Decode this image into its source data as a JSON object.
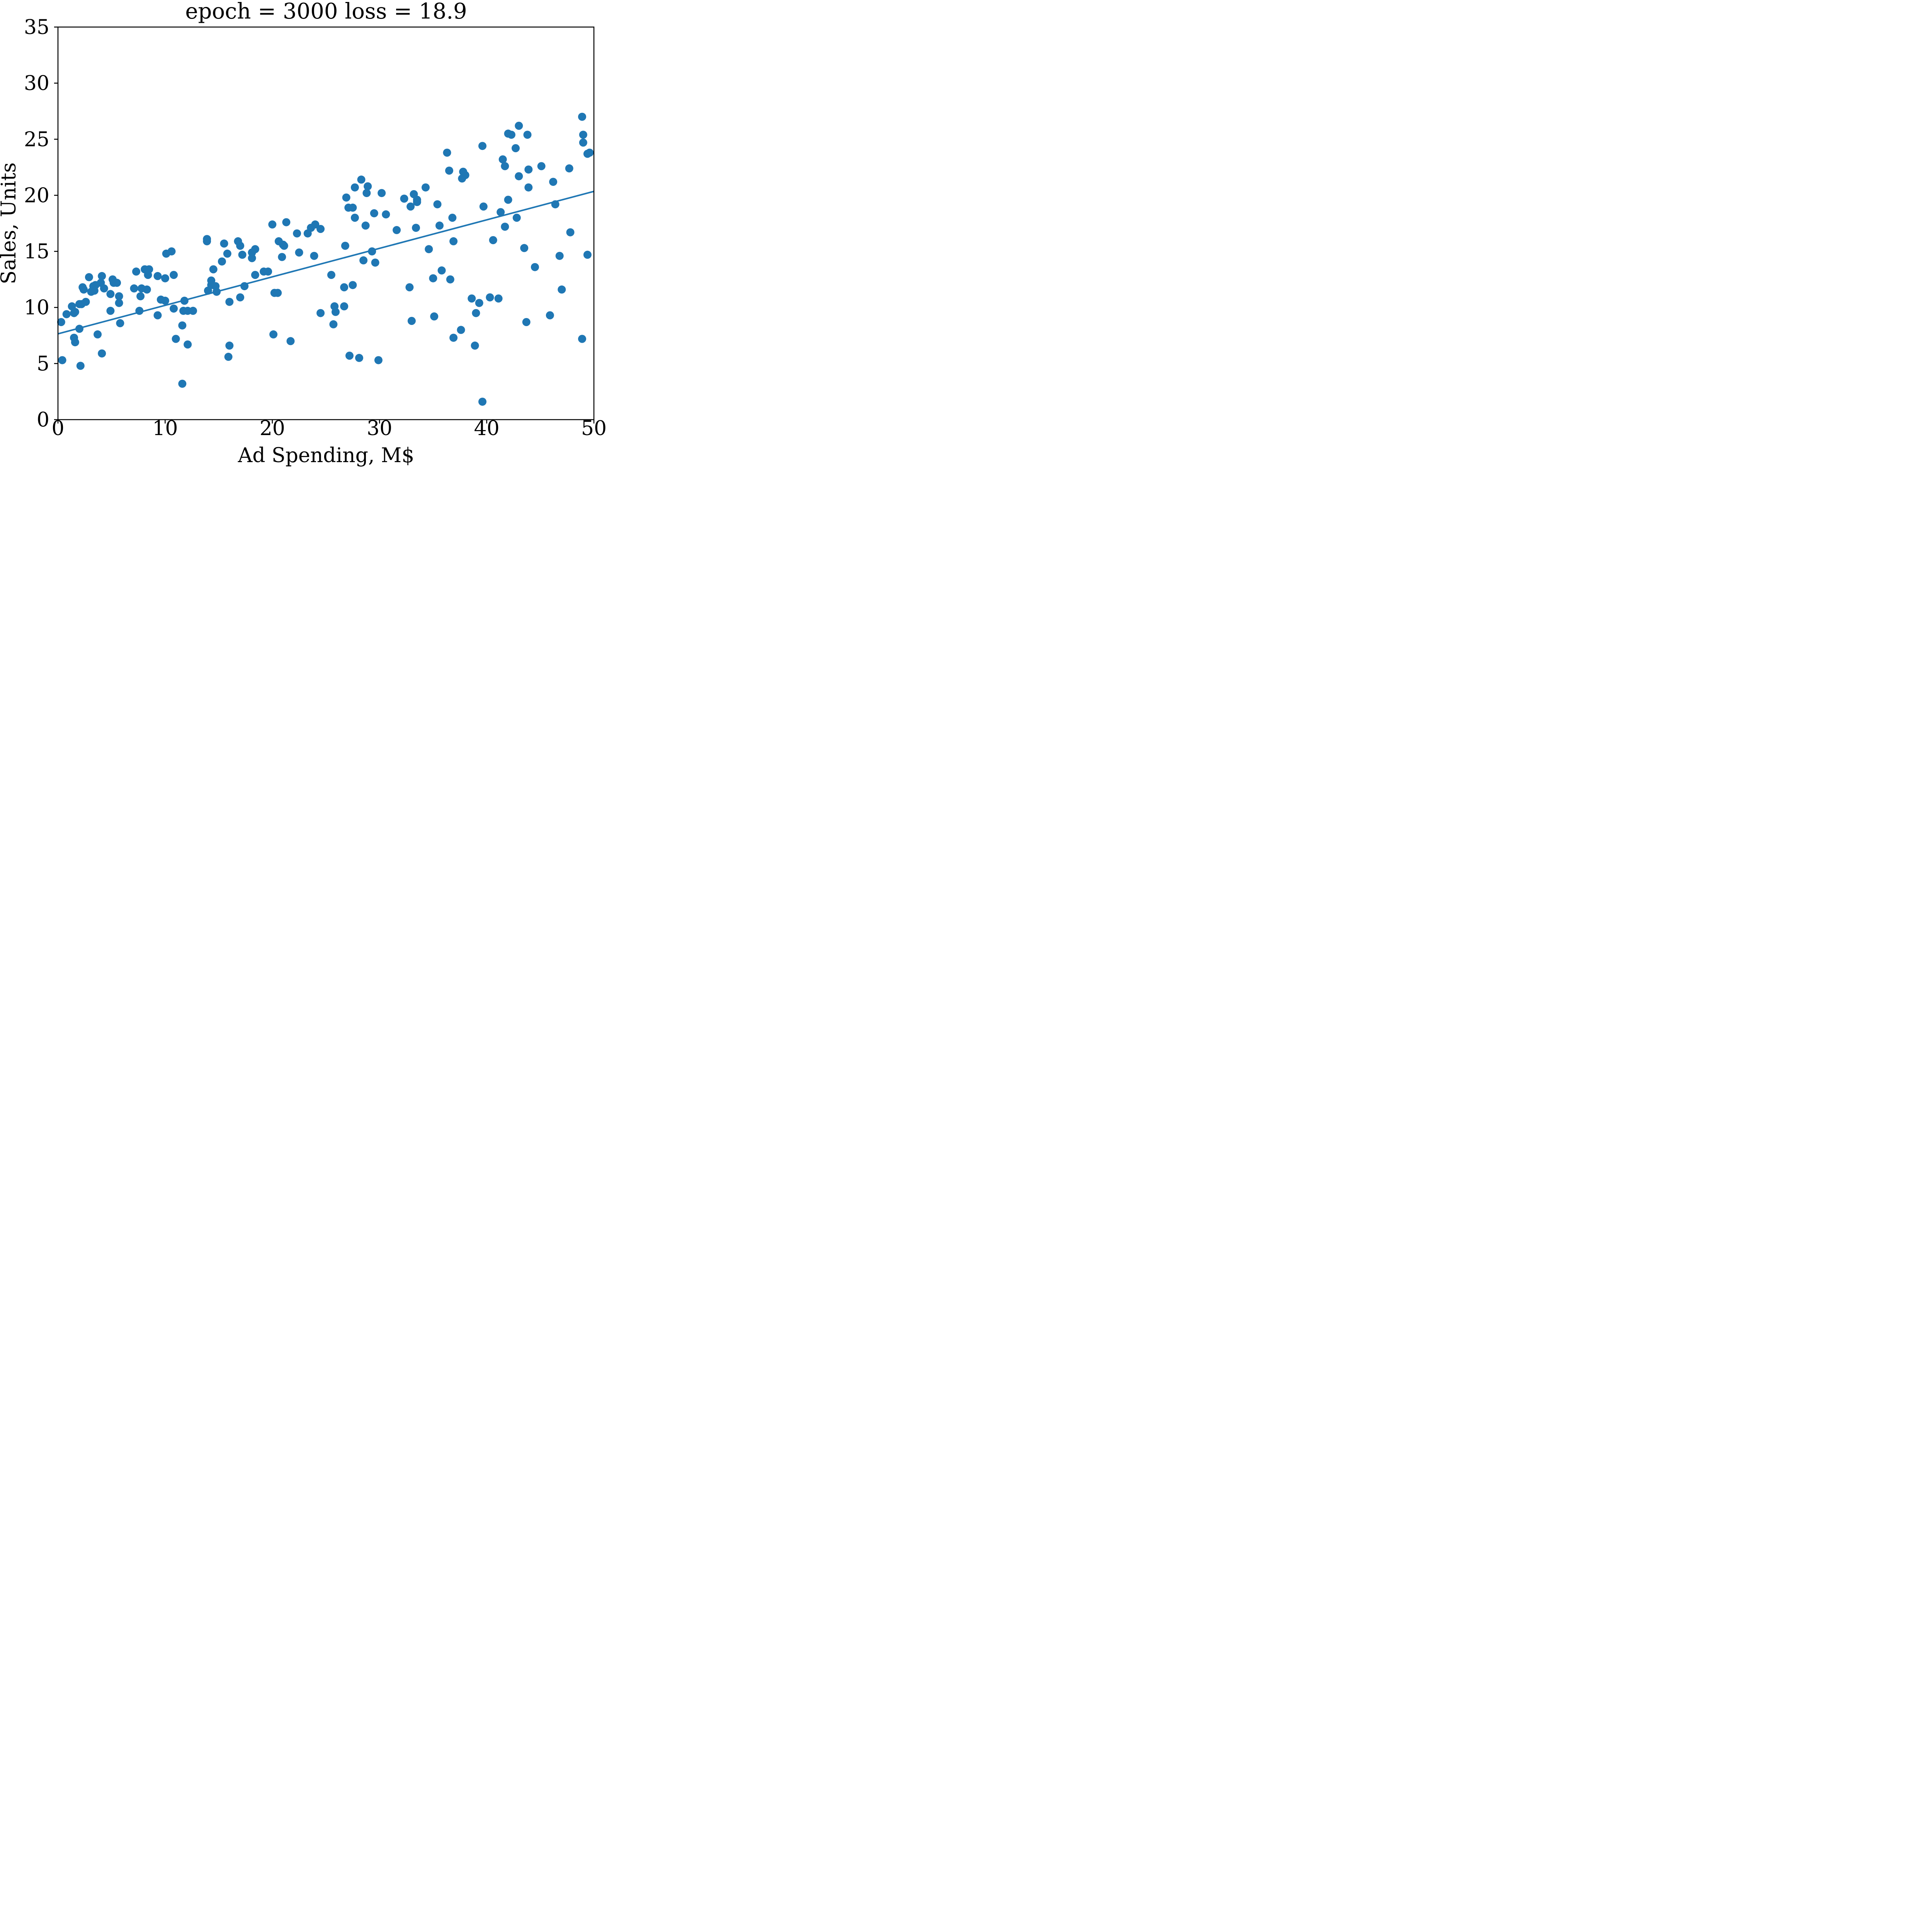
{
  "chart_data": {
    "type": "scatter",
    "title": "epoch = 3000 loss = 18.9",
    "xlabel": "Ad Spending, M$",
    "ylabel": "Sales, Units",
    "xlim": [
      0,
      50
    ],
    "ylim": [
      0,
      35
    ],
    "xticks": [
      0,
      10,
      20,
      30,
      40,
      50
    ],
    "yticks": [
      0,
      5,
      10,
      15,
      20,
      25,
      30,
      35
    ],
    "grid": false,
    "color": "#1f77b4",
    "series": [
      {
        "type": "scatter",
        "points": [
          [
            0.3,
            8.7
          ],
          [
            0.4,
            5.3
          ],
          [
            0.8,
            9.4
          ],
          [
            1.3,
            10.1
          ],
          [
            1.5,
            9.5
          ],
          [
            1.5,
            7.3
          ],
          [
            1.6,
            6.9
          ],
          [
            1.6,
            9.6
          ],
          [
            2.0,
            8.1
          ],
          [
            2.1,
            4.8
          ],
          [
            2.0,
            10.3
          ],
          [
            2.2,
            10.3
          ],
          [
            2.3,
            11.8
          ],
          [
            2.4,
            11.6
          ],
          [
            2.6,
            10.5
          ],
          [
            2.9,
            12.7
          ],
          [
            3.1,
            11.4
          ],
          [
            3.3,
            11.9
          ],
          [
            3.4,
            11.5
          ],
          [
            3.5,
            12.0
          ],
          [
            3.7,
            7.6
          ],
          [
            4.0,
            12.2
          ],
          [
            4.1,
            12.8
          ],
          [
            4.1,
            5.9
          ],
          [
            4.3,
            11.7
          ],
          [
            4.9,
            11.2
          ],
          [
            4.9,
            9.7
          ],
          [
            5.1,
            12.5
          ],
          [
            5.2,
            12.2
          ],
          [
            5.5,
            12.2
          ],
          [
            5.7,
            11.0
          ],
          [
            5.7,
            10.4
          ],
          [
            5.8,
            8.6
          ],
          [
            7.1,
            11.7
          ],
          [
            7.3,
            13.2
          ],
          [
            7.6,
            9.7
          ],
          [
            7.7,
            11.0
          ],
          [
            7.8,
            11.7
          ],
          [
            8.1,
            13.4
          ],
          [
            8.4,
            12.9
          ],
          [
            8.3,
            11.6
          ],
          [
            8.5,
            13.4
          ],
          [
            9.3,
            12.8
          ],
          [
            9.3,
            9.3
          ],
          [
            9.6,
            10.7
          ],
          [
            10.0,
            10.6
          ],
          [
            10.0,
            12.6
          ],
          [
            10.1,
            14.8
          ],
          [
            10.6,
            15.0
          ],
          [
            10.8,
            12.9
          ],
          [
            10.8,
            9.9
          ],
          [
            11.0,
            7.2
          ],
          [
            11.6,
            8.4
          ],
          [
            11.7,
            9.7
          ],
          [
            11.6,
            3.2
          ],
          [
            11.8,
            10.6
          ],
          [
            12.1,
            9.7
          ],
          [
            12.1,
            6.7
          ],
          [
            12.6,
            9.7
          ],
          [
            13.9,
            16.1
          ],
          [
            13.9,
            15.9
          ],
          [
            14.0,
            11.5
          ],
          [
            14.3,
            12.4
          ],
          [
            14.3,
            12.0
          ],
          [
            14.5,
            13.4
          ],
          [
            14.7,
            11.9
          ],
          [
            14.8,
            11.4
          ],
          [
            15.3,
            14.1
          ],
          [
            15.5,
            15.7
          ],
          [
            15.8,
            14.8
          ],
          [
            15.9,
            5.6
          ],
          [
            16.0,
            10.5
          ],
          [
            16.0,
            6.6
          ],
          [
            16.8,
            15.9
          ],
          [
            17.0,
            15.5
          ],
          [
            17.2,
            14.7
          ],
          [
            17.0,
            10.9
          ],
          [
            17.4,
            11.9
          ],
          [
            18.1,
            14.9
          ],
          [
            18.1,
            14.4
          ],
          [
            18.4,
            15.2
          ],
          [
            18.4,
            12.9
          ],
          [
            19.2,
            13.2
          ],
          [
            19.6,
            13.2
          ],
          [
            20.0,
            17.4
          ],
          [
            20.1,
            7.6
          ],
          [
            20.2,
            11.3
          ],
          [
            20.5,
            11.3
          ],
          [
            20.6,
            15.9
          ],
          [
            20.9,
            14.5
          ],
          [
            21.0,
            15.6
          ],
          [
            21.1,
            15.5
          ],
          [
            21.3,
            17.6
          ],
          [
            21.7,
            7.0
          ],
          [
            22.3,
            16.6
          ],
          [
            22.5,
            14.9
          ],
          [
            23.3,
            16.6
          ],
          [
            23.6,
            17.1
          ],
          [
            24.0,
            17.4
          ],
          [
            23.9,
            14.6
          ],
          [
            24.5,
            17.0
          ],
          [
            24.5,
            9.5
          ],
          [
            25.5,
            12.9
          ],
          [
            25.7,
            8.5
          ],
          [
            25.8,
            10.1
          ],
          [
            25.9,
            9.6
          ],
          [
            26.7,
            11.8
          ],
          [
            26.7,
            10.1
          ],
          [
            26.8,
            15.5
          ],
          [
            26.9,
            19.8
          ],
          [
            27.1,
            18.9
          ],
          [
            27.2,
            5.7
          ],
          [
            27.5,
            18.9
          ],
          [
            27.5,
            12.0
          ],
          [
            27.7,
            18.0
          ],
          [
            27.7,
            20.7
          ],
          [
            28.1,
            5.5
          ],
          [
            28.3,
            21.4
          ],
          [
            28.5,
            14.2
          ],
          [
            28.7,
            17.3
          ],
          [
            28.8,
            20.2
          ],
          [
            28.9,
            20.8
          ],
          [
            29.3,
            15.0
          ],
          [
            29.5,
            18.4
          ],
          [
            29.6,
            14.0
          ],
          [
            29.9,
            5.3
          ],
          [
            30.2,
            20.2
          ],
          [
            30.6,
            18.3
          ],
          [
            31.6,
            16.9
          ],
          [
            32.3,
            19.7
          ],
          [
            32.8,
            11.8
          ],
          [
            32.9,
            19.0
          ],
          [
            33.0,
            8.8
          ],
          [
            33.2,
            20.1
          ],
          [
            33.4,
            17.1
          ],
          [
            33.5,
            19.6
          ],
          [
            33.5,
            19.4
          ],
          [
            34.3,
            20.7
          ],
          [
            34.6,
            15.2
          ],
          [
            35.0,
            12.6
          ],
          [
            35.1,
            9.2
          ],
          [
            35.4,
            19.2
          ],
          [
            35.6,
            17.3
          ],
          [
            35.8,
            13.3
          ],
          [
            36.3,
            23.8
          ],
          [
            36.5,
            22.2
          ],
          [
            36.6,
            12.5
          ],
          [
            36.8,
            18.0
          ],
          [
            36.9,
            15.9
          ],
          [
            36.9,
            7.3
          ],
          [
            37.6,
            8.0
          ],
          [
            37.7,
            21.5
          ],
          [
            37.8,
            22.1
          ],
          [
            38.0,
            21.8
          ],
          [
            38.6,
            10.8
          ],
          [
            38.9,
            6.6
          ],
          [
            39.0,
            9.5
          ],
          [
            39.3,
            10.4
          ],
          [
            39.6,
            1.6
          ],
          [
            39.6,
            24.4
          ],
          [
            39.7,
            19.0
          ],
          [
            40.3,
            10.9
          ],
          [
            40.6,
            16.0
          ],
          [
            41.1,
            10.8
          ],
          [
            41.3,
            18.5
          ],
          [
            41.5,
            23.2
          ],
          [
            41.7,
            22.6
          ],
          [
            41.7,
            17.2
          ],
          [
            42.0,
            25.5
          ],
          [
            42.0,
            19.6
          ],
          [
            42.3,
            25.4
          ],
          [
            42.7,
            24.2
          ],
          [
            42.8,
            18.0
          ],
          [
            43.0,
            21.7
          ],
          [
            43.0,
            26.2
          ],
          [
            43.5,
            15.3
          ],
          [
            43.7,
            8.7
          ],
          [
            43.8,
            25.4
          ],
          [
            43.9,
            22.3
          ],
          [
            43.9,
            20.7
          ],
          [
            44.5,
            13.6
          ],
          [
            45.1,
            22.6
          ],
          [
            45.9,
            9.3
          ],
          [
            46.2,
            21.2
          ],
          [
            46.4,
            19.2
          ],
          [
            46.8,
            14.6
          ],
          [
            47.0,
            11.6
          ],
          [
            47.7,
            22.4
          ],
          [
            47.8,
            16.7
          ],
          [
            48.9,
            27.0
          ],
          [
            48.9,
            7.2
          ],
          [
            49.0,
            25.4
          ],
          [
            49.0,
            24.7
          ],
          [
            49.4,
            23.7
          ],
          [
            49.4,
            14.7
          ],
          [
            49.6,
            23.8
          ]
        ]
      },
      {
        "type": "line",
        "points": [
          [
            0,
            7.65
          ],
          [
            50,
            20.35
          ]
        ]
      }
    ]
  }
}
